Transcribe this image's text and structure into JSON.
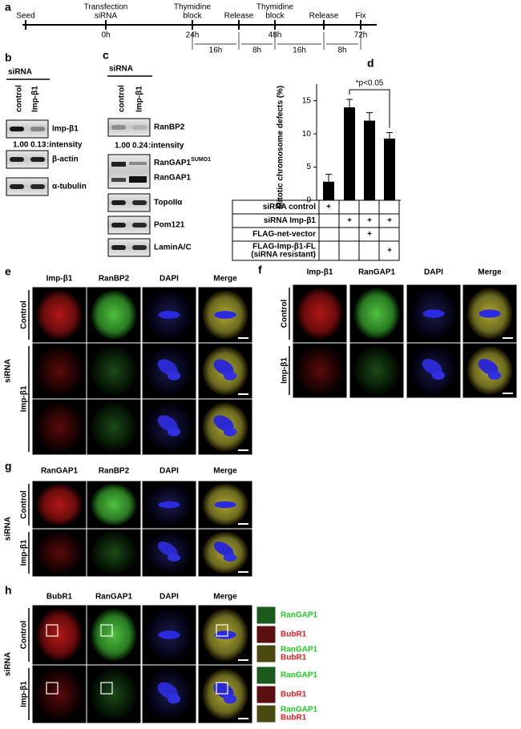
{
  "a": {
    "label": "a",
    "events": [
      {
        "lines": [
          "Seed"
        ]
      },
      {
        "lines": [
          "Transfection",
          "siRNA"
        ],
        "time": "0h"
      },
      {
        "lines": [
          "Thymidine",
          "block"
        ],
        "time": "24h"
      },
      {
        "lines": [
          "Release"
        ]
      },
      {
        "lines": [
          "Thymidine",
          "block"
        ],
        "time": "48h"
      },
      {
        "lines": [
          "Release"
        ]
      },
      {
        "lines": [
          "Fix"
        ],
        "time": "72h"
      }
    ],
    "intervals": [
      "16h",
      "8h",
      "16h",
      "8h"
    ]
  },
  "b": {
    "label": "b",
    "group": "siRNA",
    "lanes": [
      "control",
      "Imp-β1"
    ],
    "blots": [
      "Imp-β1",
      "β-actin",
      "α-tubulin"
    ],
    "intensities": [
      "1.00",
      "0.13"
    ],
    "intensity_label": ":intensity"
  },
  "c": {
    "label": "c",
    "group": "siRNA",
    "lanes": [
      "control",
      "Imp-β1"
    ],
    "blots": [
      "RanBP2",
      {
        "name": "RanGAP1",
        "sup": "SUMO1"
      },
      "RanGAP1",
      "TopoIIα",
      "Pom121",
      "LaminA/C"
    ],
    "intensities": [
      "1.00",
      "0.24"
    ],
    "intensity_label": ":intensity"
  },
  "d": {
    "label": "d",
    "chart": {
      "type": "bar",
      "y_label": "Mitotic chromosome defects (%)",
      "values": [
        2.8,
        14,
        12,
        9.3
      ],
      "errors": [
        1.1,
        1.2,
        1.2,
        0.9
      ],
      "ylim": [
        0,
        17.5
      ],
      "yticks": [
        0,
        5,
        10,
        15
      ],
      "color": "#000000",
      "significance": "*p<0.05"
    },
    "table": {
      "symbol": "+",
      "rows": [
        {
          "label": [
            "siRNA control"
          ],
          "cells": [
            true,
            false,
            false,
            false
          ]
        },
        {
          "label": [
            "siRNA Imp-β1"
          ],
          "cells": [
            false,
            true,
            true,
            true
          ]
        },
        {
          "label": [
            "FLAG-net-vector"
          ],
          "cells": [
            false,
            false,
            true,
            false
          ]
        },
        {
          "label": [
            "FLAG-Imp-β1-FL",
            "(siRNA resistant)"
          ],
          "cells": [
            false,
            false,
            false,
            true
          ]
        }
      ]
    }
  },
  "e": {
    "label": "e",
    "side": "siRNA",
    "columns": [
      "Imp-β1",
      "RanBP2",
      "DAPI",
      "Merge"
    ],
    "rows": [
      "Control",
      "Imp-β1"
    ]
  },
  "f": {
    "label": "f",
    "columns": [
      "Imp-β1",
      "RanGAP1",
      "DAPI",
      "Merge"
    ],
    "rows": [
      "Control",
      "Imp-β1"
    ]
  },
  "g": {
    "label": "g",
    "side": "siRNA",
    "columns": [
      "RanGAP1",
      "RanBP2",
      "DAPI",
      "Merge"
    ],
    "rows": [
      "Control",
      "Imp-β1"
    ]
  },
  "h": {
    "label": "h",
    "side": "siRNA",
    "columns": [
      "BubR1",
      "RanGAP1",
      "DAPI",
      "Merge"
    ],
    "rows": [
      "Control",
      "Imp-β1"
    ],
    "insets": [
      "RanGAP1",
      "BubR1",
      "RanGAP1",
      "BubR1"
    ]
  }
}
